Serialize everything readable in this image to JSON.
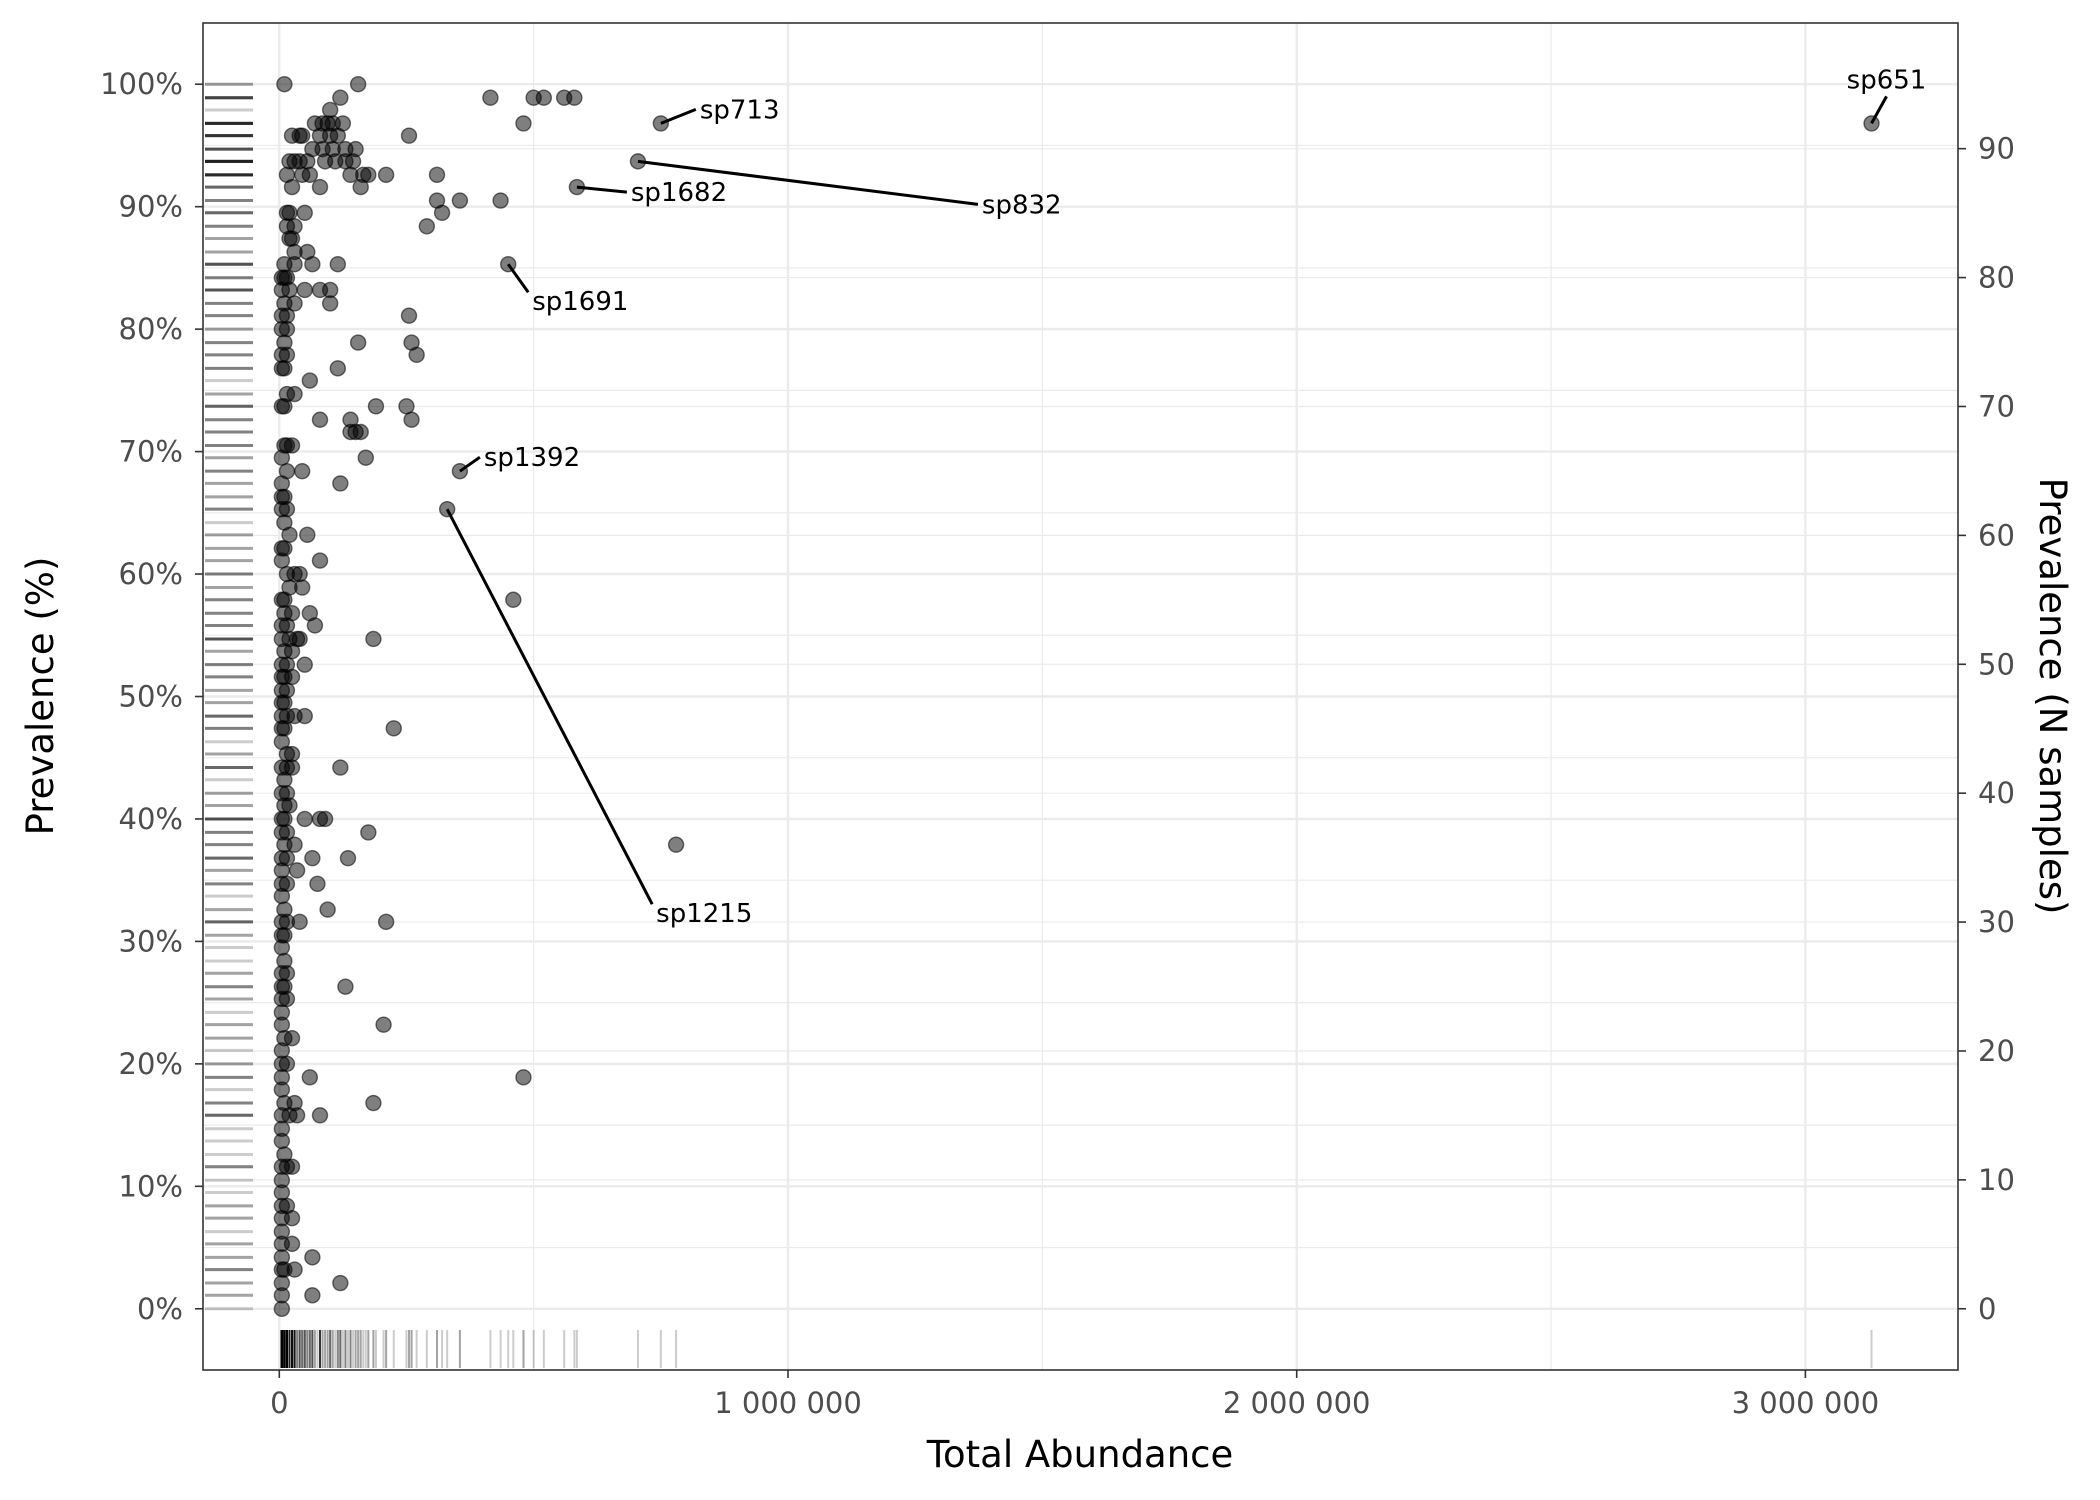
{
  "chart_data": {
    "type": "scatter",
    "xlabel": "Total Abundance",
    "ylabel": "Prevalence (%)",
    "ylabel_right": "Prevalence (N samples)",
    "xlim": [
      -150000,
      3300000
    ],
    "ylim": [
      -5,
      105
    ],
    "y_right_scale": 0.95,
    "x_ticks": [
      0,
      1000000,
      2000000,
      3000000
    ],
    "x_tick_labels": [
      "0",
      "1 000 000",
      "2 000 000",
      "3 000 000"
    ],
    "y_ticks": [
      0,
      10,
      20,
      30,
      40,
      50,
      60,
      70,
      80,
      90,
      100
    ],
    "y_tick_labels": [
      "0%",
      "10%",
      "20%",
      "30%",
      "40%",
      "50%",
      "60%",
      "70%",
      "80%",
      "90%",
      "100%"
    ],
    "y_right_ticks": [
      0,
      10,
      20,
      30,
      40,
      50,
      60,
      70,
      80,
      90
    ],
    "y_right_tick_labels": [
      "0",
      "10",
      "20",
      "30",
      "40",
      "50",
      "60",
      "70",
      "80",
      "90"
    ],
    "grid": true,
    "point_color": "#000000",
    "point_opacity": 0.5,
    "rug": {
      "x": true,
      "y": true
    },
    "labeled_points": [
      {
        "name": "sp651",
        "x": 3130000,
        "y": 96.8
      },
      {
        "name": "sp713",
        "x": 750000,
        "y": 96.8
      },
      {
        "name": "sp832",
        "x": 705000,
        "y": 93.7
      },
      {
        "name": "sp1682",
        "x": 585000,
        "y": 91.6
      },
      {
        "name": "sp1691",
        "x": 450000,
        "y": 85.3
      },
      {
        "name": "sp1392",
        "x": 355000,
        "y": 68.4
      },
      {
        "name": "sp1215",
        "x": 330000,
        "y": 65.3
      }
    ],
    "points": [
      [
        10000,
        100
      ],
      [
        155000,
        100
      ],
      [
        120000,
        98.9
      ],
      [
        415000,
        98.9
      ],
      [
        500000,
        98.9
      ],
      [
        520000,
        98.9
      ],
      [
        560000,
        98.9
      ],
      [
        580000,
        98.9
      ],
      [
        100000,
        97.9
      ],
      [
        70000,
        96.8
      ],
      [
        85000,
        96.8
      ],
      [
        95000,
        96.8
      ],
      [
        105000,
        96.8
      ],
      [
        125000,
        96.8
      ],
      [
        480000,
        96.8
      ],
      [
        750000,
        96.8
      ],
      [
        3130000,
        96.8
      ],
      [
        25000,
        95.8
      ],
      [
        40000,
        95.8
      ],
      [
        45000,
        95.8
      ],
      [
        80000,
        95.8
      ],
      [
        100000,
        95.8
      ],
      [
        115000,
        95.8
      ],
      [
        255000,
        95.8
      ],
      [
        65000,
        94.7
      ],
      [
        85000,
        94.7
      ],
      [
        105000,
        94.7
      ],
      [
        130000,
        94.7
      ],
      [
        150000,
        94.7
      ],
      [
        20000,
        93.7
      ],
      [
        30000,
        93.7
      ],
      [
        40000,
        93.7
      ],
      [
        55000,
        93.7
      ],
      [
        90000,
        93.7
      ],
      [
        110000,
        93.7
      ],
      [
        130000,
        93.7
      ],
      [
        145000,
        93.7
      ],
      [
        705000,
        93.7
      ],
      [
        15000,
        92.6
      ],
      [
        45000,
        92.6
      ],
      [
        60000,
        92.6
      ],
      [
        140000,
        92.6
      ],
      [
        165000,
        92.6
      ],
      [
        175000,
        92.6
      ],
      [
        210000,
        92.6
      ],
      [
        310000,
        92.6
      ],
      [
        25000,
        91.6
      ],
      [
        80000,
        91.6
      ],
      [
        160000,
        91.6
      ],
      [
        585000,
        91.6
      ],
      [
        310000,
        90.5
      ],
      [
        355000,
        90.5
      ],
      [
        435000,
        90.5
      ],
      [
        15000,
        89.5
      ],
      [
        20000,
        89.5
      ],
      [
        50000,
        89.5
      ],
      [
        320000,
        89.5
      ],
      [
        15000,
        88.4
      ],
      [
        30000,
        88.4
      ],
      [
        290000,
        88.4
      ],
      [
        20000,
        87.4
      ],
      [
        25000,
        87.4
      ],
      [
        30000,
        86.3
      ],
      [
        55000,
        86.3
      ],
      [
        10000,
        85.3
      ],
      [
        30000,
        85.3
      ],
      [
        65000,
        85.3
      ],
      [
        115000,
        85.3
      ],
      [
        450000,
        85.3
      ],
      [
        5000,
        84.2
      ],
      [
        10000,
        84.2
      ],
      [
        15000,
        84.2
      ],
      [
        5000,
        83.2
      ],
      [
        20000,
        83.2
      ],
      [
        50000,
        83.2
      ],
      [
        80000,
        83.2
      ],
      [
        100000,
        83.2
      ],
      [
        10000,
        82.1
      ],
      [
        30000,
        82.1
      ],
      [
        100000,
        82.1
      ],
      [
        5000,
        81.1
      ],
      [
        15000,
        81.1
      ],
      [
        255000,
        81.1
      ],
      [
        5000,
        80
      ],
      [
        15000,
        80
      ],
      [
        10000,
        78.9
      ],
      [
        155000,
        78.9
      ],
      [
        260000,
        78.9
      ],
      [
        5000,
        77.9
      ],
      [
        15000,
        77.9
      ],
      [
        270000,
        77.9
      ],
      [
        5000,
        76.8
      ],
      [
        10000,
        76.8
      ],
      [
        115000,
        76.8
      ],
      [
        60000,
        75.8
      ],
      [
        15000,
        74.7
      ],
      [
        30000,
        74.7
      ],
      [
        5000,
        73.7
      ],
      [
        10000,
        73.7
      ],
      [
        190000,
        73.7
      ],
      [
        250000,
        73.7
      ],
      [
        80000,
        72.6
      ],
      [
        140000,
        72.6
      ],
      [
        260000,
        72.6
      ],
      [
        140000,
        71.6
      ],
      [
        150000,
        71.6
      ],
      [
        160000,
        71.6
      ],
      [
        10000,
        70.5
      ],
      [
        15000,
        70.5
      ],
      [
        25000,
        70.5
      ],
      [
        5000,
        69.5
      ],
      [
        170000,
        69.5
      ],
      [
        15000,
        68.4
      ],
      [
        45000,
        68.4
      ],
      [
        355000,
        68.4
      ],
      [
        5000,
        67.4
      ],
      [
        120000,
        67.4
      ],
      [
        5000,
        66.3
      ],
      [
        10000,
        66.3
      ],
      [
        5000,
        65.3
      ],
      [
        15000,
        65.3
      ],
      [
        330000,
        65.3
      ],
      [
        10000,
        64.2
      ],
      [
        20000,
        63.2
      ],
      [
        55000,
        63.2
      ],
      [
        5000,
        62.1
      ],
      [
        10000,
        62.1
      ],
      [
        5000,
        61.1
      ],
      [
        80000,
        61.1
      ],
      [
        15000,
        60
      ],
      [
        30000,
        60
      ],
      [
        40000,
        60
      ],
      [
        20000,
        58.9
      ],
      [
        45000,
        58.9
      ],
      [
        5000,
        57.9
      ],
      [
        10000,
        57.9
      ],
      [
        460000,
        57.9
      ],
      [
        10000,
        56.8
      ],
      [
        25000,
        56.8
      ],
      [
        60000,
        56.8
      ],
      [
        5000,
        55.8
      ],
      [
        15000,
        55.8
      ],
      [
        70000,
        55.8
      ],
      [
        5000,
        54.7
      ],
      [
        20000,
        54.7
      ],
      [
        35000,
        54.7
      ],
      [
        40000,
        54.7
      ],
      [
        185000,
        54.7
      ],
      [
        10000,
        53.7
      ],
      [
        25000,
        53.7
      ],
      [
        5000,
        52.6
      ],
      [
        15000,
        52.6
      ],
      [
        50000,
        52.6
      ],
      [
        5000,
        51.6
      ],
      [
        10000,
        51.6
      ],
      [
        25000,
        51.6
      ],
      [
        5000,
        50.5
      ],
      [
        15000,
        50.5
      ],
      [
        5000,
        49.5
      ],
      [
        10000,
        49.5
      ],
      [
        5000,
        48.4
      ],
      [
        15000,
        48.4
      ],
      [
        30000,
        48.4
      ],
      [
        50000,
        48.4
      ],
      [
        5000,
        47.4
      ],
      [
        10000,
        47.4
      ],
      [
        225000,
        47.4
      ],
      [
        5000,
        46.3
      ],
      [
        15000,
        45.3
      ],
      [
        25000,
        45.3
      ],
      [
        5000,
        44.2
      ],
      [
        15000,
        44.2
      ],
      [
        25000,
        44.2
      ],
      [
        120000,
        44.2
      ],
      [
        10000,
        43.2
      ],
      [
        5000,
        42.1
      ],
      [
        15000,
        42.1
      ],
      [
        10000,
        41.1
      ],
      [
        20000,
        41.1
      ],
      [
        5000,
        40
      ],
      [
        10000,
        40
      ],
      [
        50000,
        40
      ],
      [
        80000,
        40
      ],
      [
        90000,
        40
      ],
      [
        5000,
        38.9
      ],
      [
        15000,
        38.9
      ],
      [
        175000,
        38.9
      ],
      [
        10000,
        37.9
      ],
      [
        30000,
        37.9
      ],
      [
        780000,
        37.9
      ],
      [
        5000,
        36.8
      ],
      [
        15000,
        36.8
      ],
      [
        65000,
        36.8
      ],
      [
        135000,
        36.8
      ],
      [
        5000,
        35.8
      ],
      [
        35000,
        35.8
      ],
      [
        5000,
        34.7
      ],
      [
        15000,
        34.7
      ],
      [
        75000,
        34.7
      ],
      [
        5000,
        33.7
      ],
      [
        10000,
        32.6
      ],
      [
        95000,
        32.6
      ],
      [
        5000,
        31.6
      ],
      [
        15000,
        31.6
      ],
      [
        40000,
        31.6
      ],
      [
        210000,
        31.6
      ],
      [
        5000,
        30.5
      ],
      [
        10000,
        30.5
      ],
      [
        5000,
        29.5
      ],
      [
        10000,
        28.4
      ],
      [
        5000,
        27.4
      ],
      [
        15000,
        27.4
      ],
      [
        5000,
        26.3
      ],
      [
        10000,
        26.3
      ],
      [
        130000,
        26.3
      ],
      [
        5000,
        25.3
      ],
      [
        15000,
        25.3
      ],
      [
        5000,
        24.2
      ],
      [
        5000,
        23.2
      ],
      [
        205000,
        23.2
      ],
      [
        10000,
        22.1
      ],
      [
        25000,
        22.1
      ],
      [
        5000,
        21.1
      ],
      [
        5000,
        20
      ],
      [
        15000,
        20
      ],
      [
        5000,
        18.9
      ],
      [
        60000,
        18.9
      ],
      [
        480000,
        18.9
      ],
      [
        5000,
        17.9
      ],
      [
        10000,
        16.8
      ],
      [
        30000,
        16.8
      ],
      [
        185000,
        16.8
      ],
      [
        5000,
        15.8
      ],
      [
        20000,
        15.8
      ],
      [
        35000,
        15.8
      ],
      [
        80000,
        15.8
      ],
      [
        5000,
        14.7
      ],
      [
        5000,
        13.7
      ],
      [
        10000,
        12.6
      ],
      [
        5000,
        11.6
      ],
      [
        15000,
        11.6
      ],
      [
        25000,
        11.6
      ],
      [
        5000,
        10.5
      ],
      [
        5000,
        9.5
      ],
      [
        5000,
        8.4
      ],
      [
        15000,
        8.4
      ],
      [
        5000,
        7.4
      ],
      [
        25000,
        7.4
      ],
      [
        5000,
        6.3
      ],
      [
        5000,
        5.3
      ],
      [
        25000,
        5.3
      ],
      [
        5000,
        4.2
      ],
      [
        65000,
        4.2
      ],
      [
        5000,
        3.2
      ],
      [
        10000,
        3.2
      ],
      [
        30000,
        3.2
      ],
      [
        5000,
        2.1
      ],
      [
        120000,
        2.1
      ],
      [
        5000,
        1.1
      ],
      [
        65000,
        1.1
      ],
      [
        5000,
        0
      ]
    ]
  }
}
